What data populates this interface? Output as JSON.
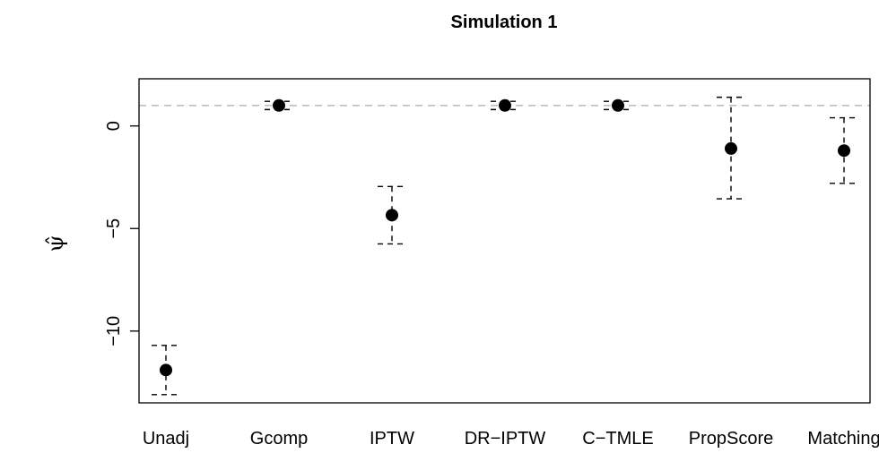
{
  "chart_data": {
    "type": "scatter",
    "title": "Simulation 1",
    "xlabel": "",
    "ylabel": "ψ̂",
    "categories": [
      "Unadj",
      "Gcomp",
      "IPTW",
      "DR−IPTW",
      "C−TMLE",
      "PropScore",
      "Matching"
    ],
    "y_ticks": [
      0,
      -5,
      -10
    ],
    "y_tick_labels": [
      "0",
      "−5",
      "−10"
    ],
    "ylim": [
      -13.5,
      2.3
    ],
    "reference_line": 1.0,
    "series": [
      {
        "estimate": [
          -11.9,
          1.0,
          -4.35,
          1.0,
          1.0,
          -1.1,
          -1.2
        ],
        "lower": [
          -13.1,
          0.8,
          -5.75,
          0.8,
          0.8,
          -3.55,
          -2.8
        ],
        "upper": [
          -10.7,
          1.2,
          -2.95,
          1.2,
          1.2,
          1.4,
          0.4
        ]
      }
    ],
    "colors": {
      "points": "#000000",
      "reference_line": "#bfbfbf",
      "axes": "#000000"
    },
    "grid": false,
    "legend": "none"
  }
}
